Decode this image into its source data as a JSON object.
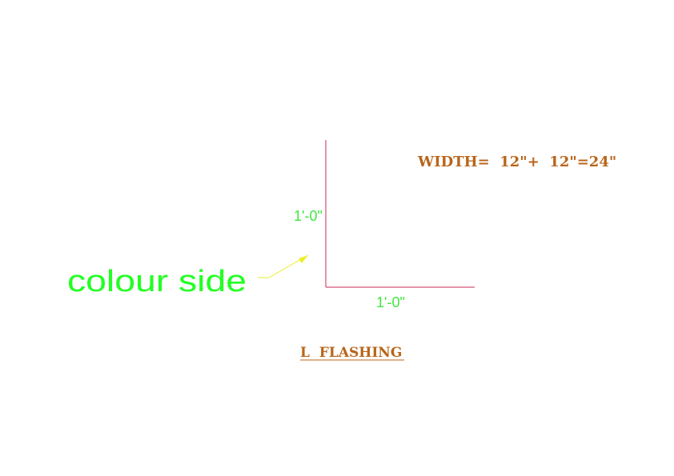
{
  "drawing": {
    "width_note": "WIDTH=  12\"+  12\"=24\"",
    "vertical_dimension": "1'-0\"",
    "horizontal_dimension": "1'-0\"",
    "annotation": "colour side",
    "title": "L  FLASHING"
  },
  "colors": {
    "flashing_line": "#cc2a55",
    "dimension_text": "#3ee83e",
    "annotation_text": "#22ff22",
    "leader_arrow": "#eaf02a",
    "heading_text": "#b8651a"
  }
}
